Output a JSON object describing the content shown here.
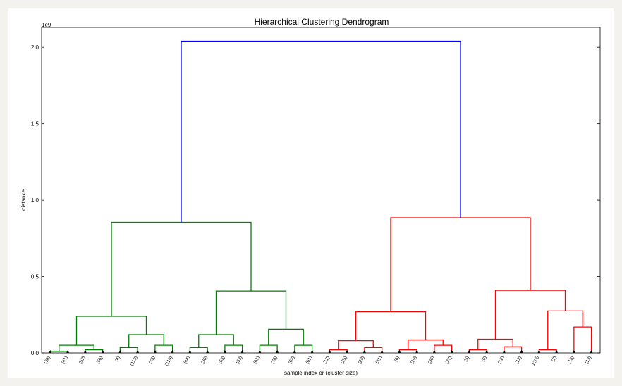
{
  "chart_data": {
    "type": "dendrogram",
    "title": "Hierarchical Clustering Dendrogram",
    "xlabel": "sample index or (cluster size)",
    "ylabel": "distance",
    "y_multiplier": "1e9",
    "ylim": [
      0,
      2.13
    ],
    "yticks": [
      0.0,
      0.5,
      1.0,
      1.5,
      2.0
    ],
    "ytick_labels": [
      "0.0",
      "0.5",
      "1.0",
      "1.5",
      "2.0"
    ],
    "leaves": [
      "(38)",
      "(41)",
      "(52)",
      "(56)",
      "(4)",
      "(113)",
      "(75)",
      "(119)",
      "(44)",
      "(36)",
      "(53)",
      "(53)",
      "(61)",
      "(78)",
      "(62)",
      "(61)",
      "(12)",
      "(25)",
      "(28)",
      "(31)",
      "(6)",
      "(19)",
      "(36)",
      "(27)",
      "(5)",
      "(9)",
      "(12)",
      "(12)",
      "1206",
      "(2)",
      "(18)",
      "(13)"
    ],
    "merges": [
      {
        "left": 0,
        "right": 1,
        "height": 0.01,
        "color": "#008000"
      },
      {
        "left": 2,
        "right": 3,
        "height": 0.02,
        "color": "#008000"
      },
      {
        "left": "c0",
        "right": "c1",
        "height": 0.05,
        "color": "#008000"
      },
      {
        "left": 4,
        "right": 5,
        "height": 0.035,
        "color": "#008000"
      },
      {
        "left": 6,
        "right": 7,
        "height": 0.05,
        "color": "#008000"
      },
      {
        "left": "c3",
        "right": "c4",
        "height": 0.12,
        "color": "#008000"
      },
      {
        "left": "c2",
        "right": "c5",
        "height": 0.24,
        "color": "#008000"
      },
      {
        "left": 8,
        "right": 9,
        "height": 0.035,
        "color": "#008000"
      },
      {
        "left": 10,
        "right": 11,
        "height": 0.05,
        "color": "#008000"
      },
      {
        "left": "c7",
        "right": "c8",
        "height": 0.12,
        "color": "#008000"
      },
      {
        "left": 12,
        "right": 13,
        "height": 0.05,
        "color": "#008000"
      },
      {
        "left": 14,
        "right": 15,
        "height": 0.05,
        "color": "#008000"
      },
      {
        "left": "c10",
        "right": "c11",
        "height": 0.155,
        "color": "#008000"
      },
      {
        "left": "c9",
        "right": "c12",
        "height": 0.405,
        "color": "#008000"
      },
      {
        "left": "c6",
        "right": "c13",
        "height": 0.855,
        "color": "#008000"
      },
      {
        "left": 16,
        "right": 17,
        "height": 0.02,
        "color": "#ff0000"
      },
      {
        "left": 18,
        "right": 19,
        "height": 0.035,
        "color": "#ff0000"
      },
      {
        "left": "c15",
        "right": "c16",
        "height": 0.08,
        "color": "#ff0000"
      },
      {
        "left": 20,
        "right": 21,
        "height": 0.02,
        "color": "#ff0000"
      },
      {
        "left": 22,
        "right": 23,
        "height": 0.05,
        "color": "#ff0000"
      },
      {
        "left": "c18",
        "right": "c19",
        "height": 0.085,
        "color": "#ff0000"
      },
      {
        "left": "c17",
        "right": "c20",
        "height": 0.27,
        "color": "#ff0000"
      },
      {
        "left": 24,
        "right": 25,
        "height": 0.02,
        "color": "#ff0000"
      },
      {
        "left": 26,
        "right": 27,
        "height": 0.04,
        "color": "#ff0000"
      },
      {
        "left": "c22",
        "right": "c23",
        "height": 0.09,
        "color": "#ff0000"
      },
      {
        "left": 28,
        "right": 29,
        "height": 0.02,
        "color": "#ff0000"
      },
      {
        "left": 30,
        "right": 31,
        "height": 0.17,
        "color": "#ff0000"
      },
      {
        "left": "c25",
        "right": "c26",
        "height": 0.275,
        "color": "#ff0000"
      },
      {
        "left": "c24",
        "right": "c27",
        "height": 0.41,
        "color": "#ff0000"
      },
      {
        "left": "c21",
        "right": "c28",
        "height": 0.885,
        "color": "#ff0000"
      },
      {
        "left": "c14",
        "right": "c29",
        "height": 2.04,
        "color": "#0000ff"
      }
    ],
    "grid": false,
    "legend": "none"
  }
}
